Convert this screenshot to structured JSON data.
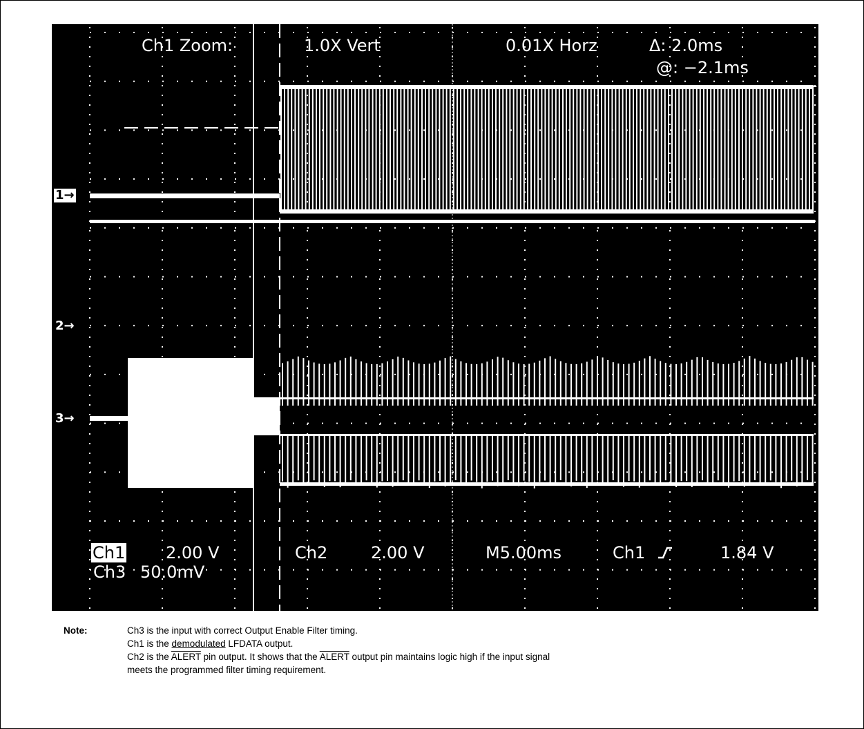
{
  "scope": {
    "zoom_label": "Ch1 Zoom:",
    "vert": "1.0X Vert",
    "horz": "0.01X Horz",
    "delta": "Δ: 2.0ms",
    "at": "@: −2.1ms",
    "markers": [
      "1",
      "2",
      "3"
    ],
    "ch1_label": "Ch1",
    "ch1_scale": "2.00 V",
    "ch3_label": "Ch3",
    "ch3_scale": "50.0mV",
    "ch2_label": "Ch2",
    "ch2_scale": "2.00 V",
    "timebase": "M5.00ms",
    "trigger_ch": "Ch1",
    "trigger_icon": "rising-edge-icon",
    "trigger_level": "1.84 V"
  },
  "note": {
    "label": "Note:",
    "line1": "Ch3 is the input with correct Output Enable Filter timing.",
    "line2_pre": "Ch1 is the ",
    "line2_ul": "demodulated",
    "line2_post": " LFDATA output.",
    "line3_a": "Ch2 is the ",
    "line3_ov1": "ALERT",
    "line3_b": " pin output. It shows that the ",
    "line3_ov2": "ALERT",
    "line3_c": " output pin maintains logic high if the input signal",
    "line4": "meets the programmed filter timing requirement."
  }
}
